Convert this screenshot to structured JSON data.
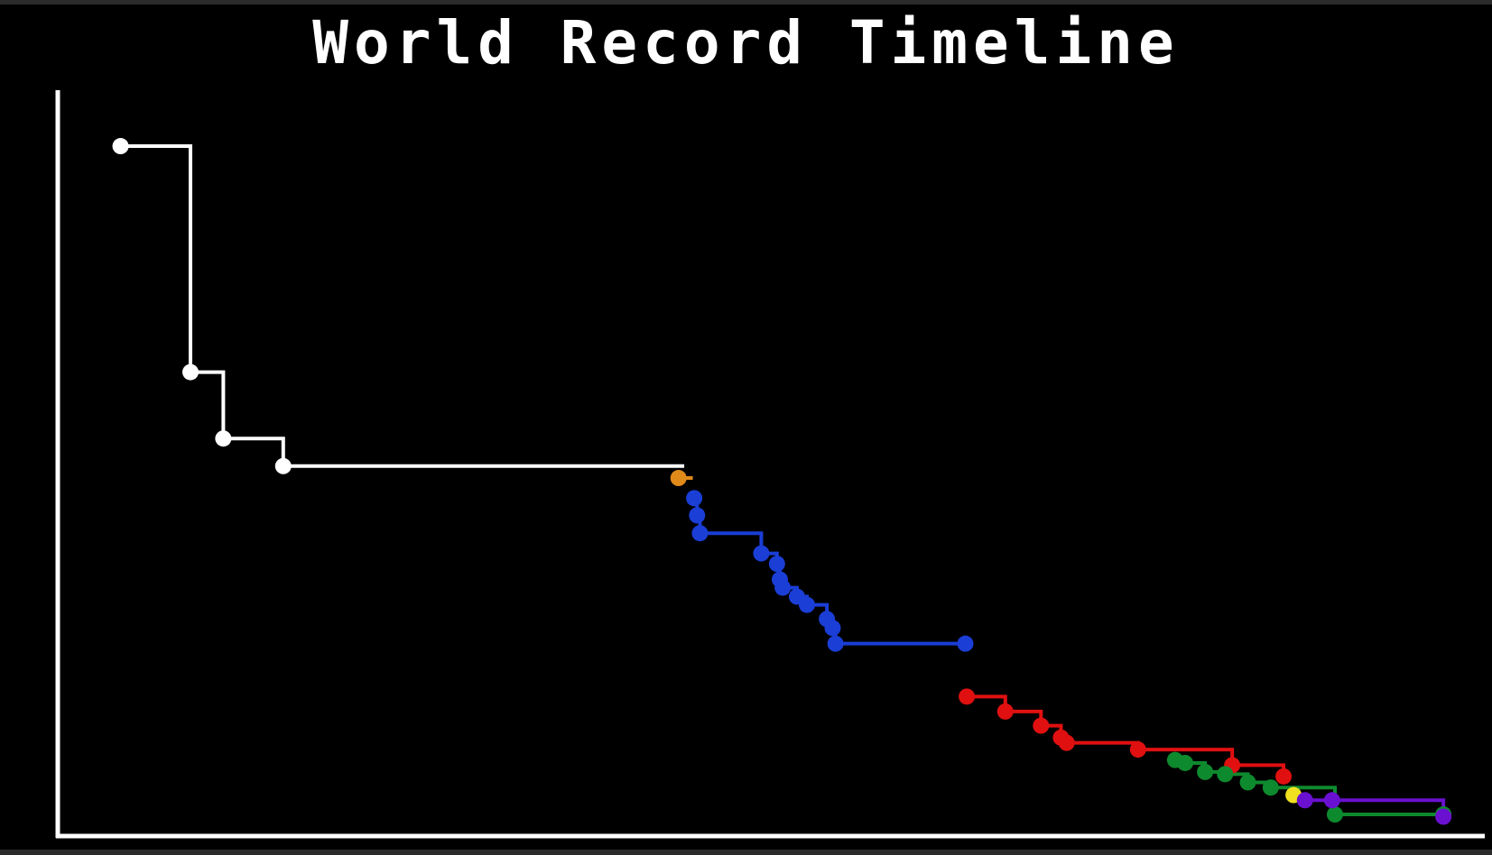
{
  "chart_data": {
    "type": "line",
    "title": "World Record Timeline",
    "xlabel": "",
    "ylabel": "",
    "grid": false,
    "legend": "none",
    "x_axis_unit": "order index",
    "xlim": [
      0,
      100
    ],
    "ylim": [
      0,
      100
    ],
    "step": "post",
    "series": [
      {
        "color": "#ffffff",
        "x": [
          4.4,
          9.3,
          11.6,
          15.8,
          43.9
        ],
        "y": [
          92.5,
          62.2,
          53.3,
          49.6,
          49.6
        ]
      },
      {
        "color": "#e08a1a",
        "x": [
          43.5,
          44.5
        ],
        "y": [
          48.0,
          48.0
        ]
      },
      {
        "color": "#1a3ed6",
        "x": [
          44.6,
          44.8,
          45.0,
          49.3,
          50.4,
          50.6,
          50.8,
          51.8,
          52.5,
          53.9,
          54.3,
          54.5,
          63.6
        ],
        "y": [
          45.3,
          43.0,
          40.6,
          37.9,
          36.5,
          34.4,
          33.3,
          32.1,
          31.0,
          29.1,
          27.9,
          25.8,
          25.8
        ]
      },
      {
        "color": "#e01010",
        "x": [
          63.7,
          66.4,
          68.9,
          70.3,
          70.7,
          75.7,
          82.3,
          85.9
        ],
        "y": [
          18.7,
          16.7,
          14.8,
          13.2,
          12.5,
          11.6,
          9.5,
          8.0
        ]
      },
      {
        "color": "#0e8a2e",
        "x": [
          78.3,
          79.0,
          80.4,
          81.8,
          83.4,
          85.0,
          89.5,
          97.1
        ],
        "y": [
          10.2,
          9.8,
          8.6,
          8.3,
          7.2,
          6.5,
          2.9,
          2.9
        ]
      },
      {
        "color": "#f0e020",
        "x": [
          86.6
        ],
        "y": [
          5.5
        ]
      },
      {
        "color": "#6a10d0",
        "x": [
          87.4,
          89.3,
          97.1
        ],
        "y": [
          4.8,
          4.8,
          2.6
        ]
      }
    ]
  }
}
